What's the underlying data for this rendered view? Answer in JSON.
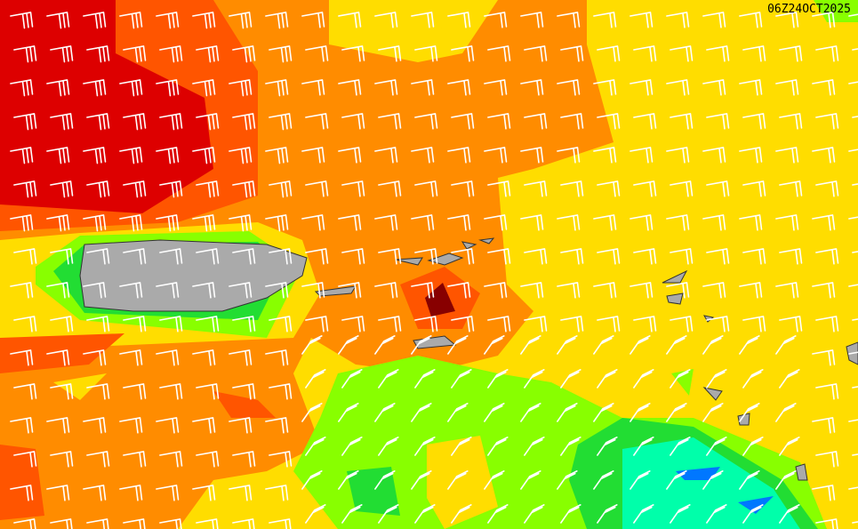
{
  "timestamp": "06Z24OCT2025",
  "colors": {
    "yellow": "#ffdd00",
    "orange": "#ff8c00",
    "orange_red": "#ff5500",
    "red": "#dd0000",
    "dark_red": "#880000",
    "light_green": "#88ff00",
    "green": "#22dd33",
    "aqua": "#00ffaa",
    "blue": "#0077ff",
    "land": "#aaaaaa",
    "barb": "#ffffff"
  },
  "features": {
    "land_masses": [
      "puerto-rico",
      "virgin-islands",
      "leeward-islands"
    ],
    "wind_barbs": "wind-barb-icon"
  }
}
